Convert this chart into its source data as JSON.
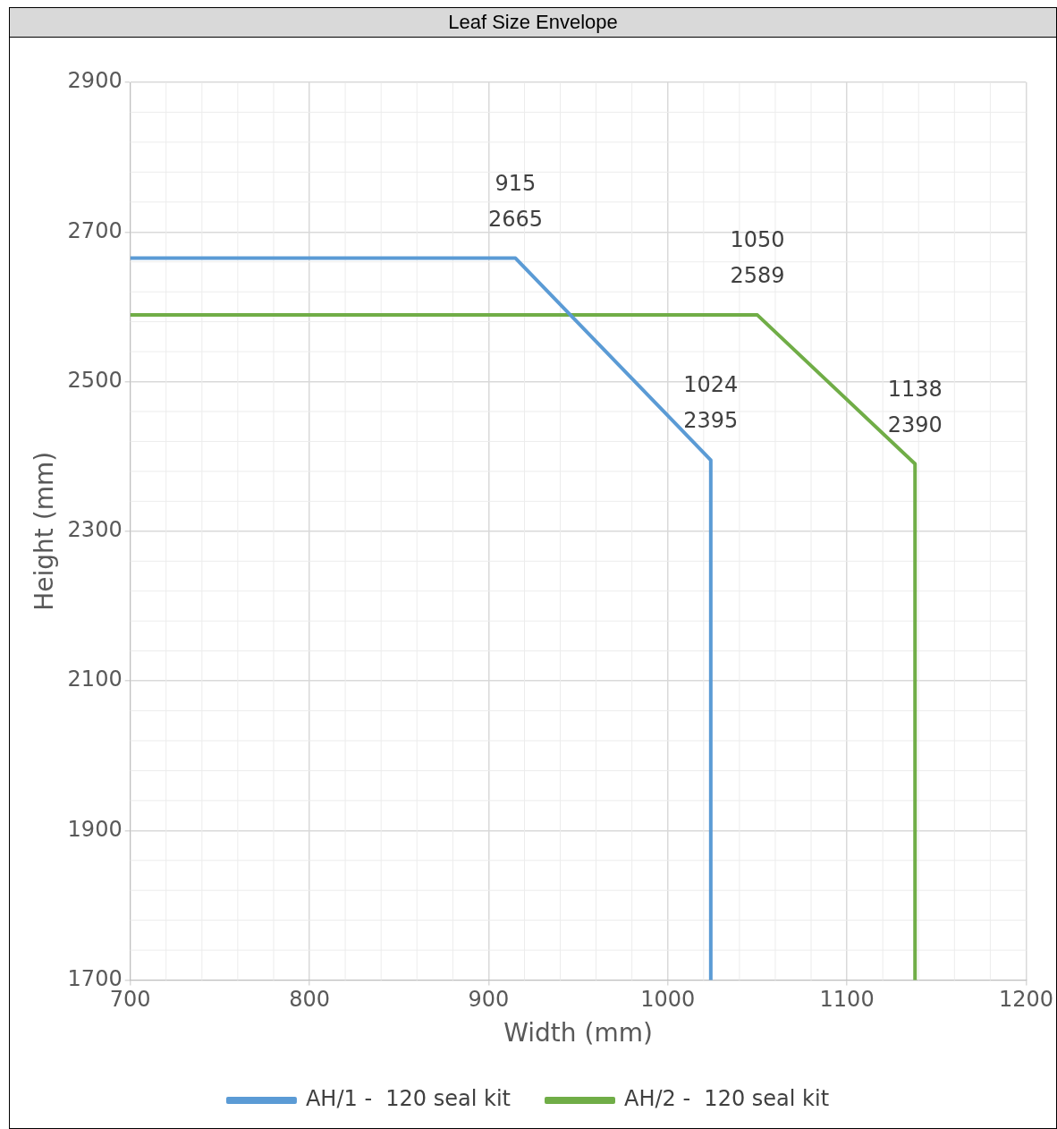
{
  "chart_data": {
    "type": "line",
    "title": "Leaf Size Envelope",
    "xlabel": "Width (mm)",
    "ylabel": "Height (mm)",
    "series": [
      {
        "name": "AH/1 -  120 seal kit",
        "color": "#5b9bd5",
        "x": [
          700,
          915,
          1024,
          1024
        ],
        "values": [
          2665,
          2665,
          2395,
          1700
        ]
      },
      {
        "name": "AH/2 -  120 seal kit",
        "color": "#70ad47",
        "x": [
          700,
          1050,
          1138,
          1138
        ],
        "values": [
          2589,
          2589,
          2390,
          1700
        ]
      }
    ],
    "xlim": [
      700,
      1200
    ],
    "xticks": [
      700,
      800,
      900,
      1000,
      1100,
      1200
    ],
    "ylim": [
      1700,
      2900
    ],
    "yticks": [
      1700,
      1900,
      2100,
      2300,
      2500,
      2700,
      2900
    ],
    "annotations": [
      {
        "text": "915\n2665",
        "x": 915,
        "y": 2665
      },
      {
        "text": "1024\n2395",
        "x": 1024,
        "y": 2395
      },
      {
        "text": "1050\n2589",
        "x": 1050,
        "y": 2589
      },
      {
        "text": "1138\n2390",
        "x": 1138,
        "y": 2390
      }
    ],
    "grid": true,
    "legend": "bottom",
    "marker": "none",
    "line_style": "solid"
  }
}
